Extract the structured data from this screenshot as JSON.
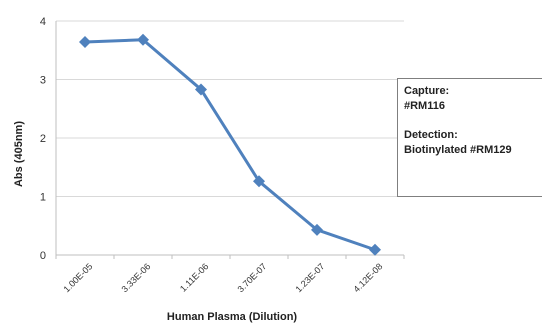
{
  "chart_data": {
    "type": "line",
    "title": "",
    "xlabel": "Human Plasma (Dilution)",
    "ylabel": "Abs (405nm)",
    "categories": [
      "1.00E-05",
      "3.33E-06",
      "1.11E-06",
      "3.70E-07",
      "1.23E-07",
      "4.12E-08"
    ],
    "series": [
      {
        "values": [
          3.64,
          3.68,
          2.83,
          1.26,
          0.43,
          0.09
        ]
      }
    ],
    "ylim": [
      0,
      4
    ],
    "yticks": [
      "0",
      "1",
      "2",
      "3",
      "4"
    ],
    "grid": true,
    "marker": "diamond",
    "color": "#4f81bd"
  },
  "annotation": {
    "capture_label": "Capture:",
    "capture_value": "#RM116",
    "detection_label": "Detection:",
    "detection_value": "Biotinylated #RM129"
  }
}
